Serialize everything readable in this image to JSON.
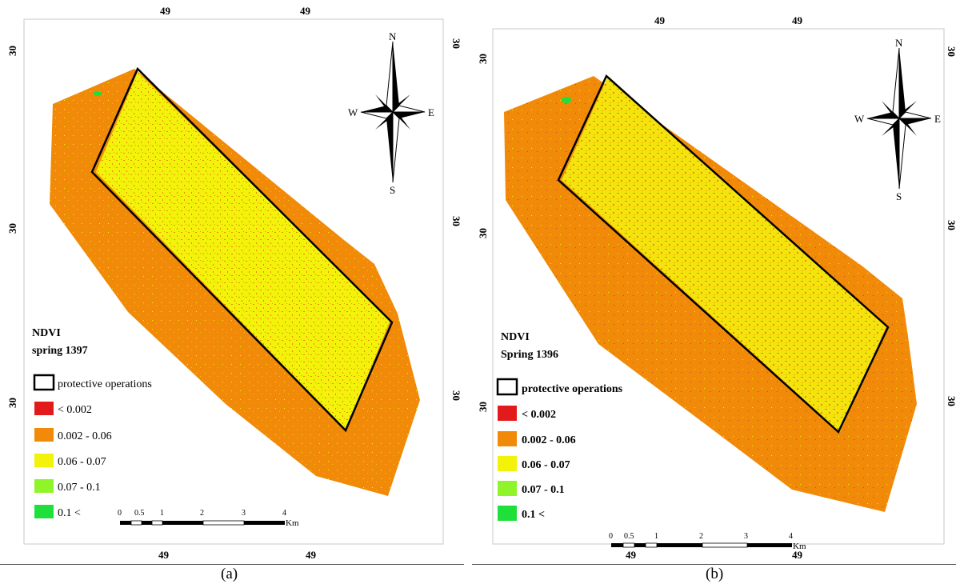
{
  "colors": {
    "ndvi_lt_0002": "#e31a1c",
    "ndvi_0002_006": "#f08a08",
    "ndvi_006_007": "#f2f20a",
    "ndvi_007_01": "#8ff52a",
    "ndvi_gt_01": "#1fe03a",
    "outline": "#000000"
  },
  "panels": [
    {
      "id": "a",
      "legend_title_line1": "NDVI",
      "legend_title_line2": "spring 1397",
      "caption": "(a)",
      "coord_top": [
        "49",
        "49"
      ],
      "coord_bottom": [
        "49",
        "49"
      ],
      "coord_left": [
        "30",
        "30",
        "30"
      ],
      "coord_right": [
        "30",
        "30",
        "30"
      ]
    },
    {
      "id": "b",
      "legend_title_line1": "NDVI",
      "legend_title_line2": "Spring 1396",
      "caption": "(b)",
      "coord_top": [
        "49",
        "49"
      ],
      "coord_bottom": [
        "49",
        "49"
      ],
      "coord_left": [
        "30",
        "30",
        "30"
      ],
      "coord_right": [
        "30",
        "30",
        "30"
      ]
    }
  ],
  "legend_items": [
    {
      "label": "protective operations",
      "swatch": "outline",
      "icon": "outline-box-icon"
    },
    {
      "label": "< 0.002",
      "swatch": "ndvi_lt_0002"
    },
    {
      "label": "0.002 - 0.06",
      "swatch": "ndvi_0002_006"
    },
    {
      "label": "0.06 - 0.07",
      "swatch": "ndvi_006_007"
    },
    {
      "label": "0.07 - 0.1",
      "swatch": "ndvi_007_01"
    },
    {
      "label": "0.1 <",
      "swatch": "ndvi_gt_01"
    }
  ],
  "compass": {
    "n": "N",
    "s": "S",
    "e": "E",
    "w": "W",
    "icon": "north-arrow-compass-icon"
  },
  "scale_bar": {
    "ticks": [
      "0",
      "0.5",
      "1",
      "2",
      "3",
      "4"
    ],
    "unit": "Km"
  }
}
